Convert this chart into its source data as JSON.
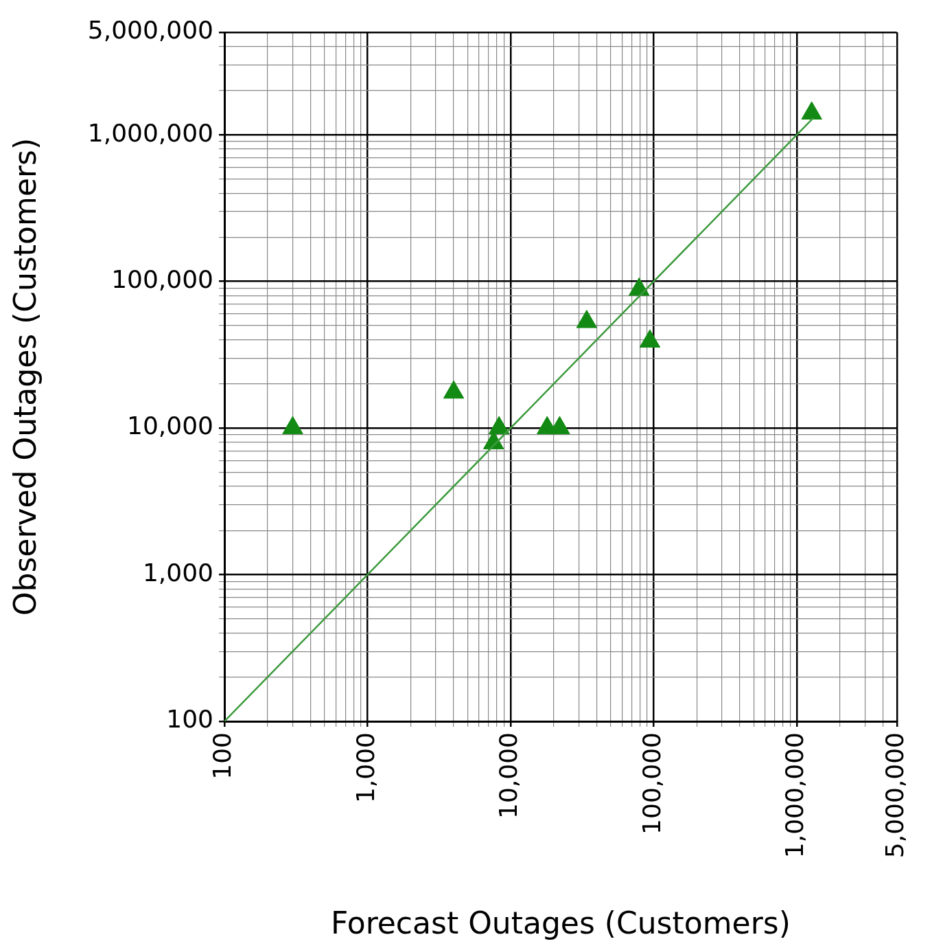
{
  "chart_data": {
    "type": "scatter",
    "xlabel": "Forecast Outages (Customers)",
    "ylabel": "Observed Outages (Customers)",
    "log": "xy",
    "grid": true,
    "legend": false,
    "marker": "triangle",
    "xlim": [
      100,
      5000000
    ],
    "ylim": [
      100,
      5000000
    ],
    "xticks": [
      {
        "value": 100,
        "label": "100"
      },
      {
        "value": 200,
        "label": null
      },
      {
        "value": 300,
        "label": null
      },
      {
        "value": 400,
        "label": null
      },
      {
        "value": 500,
        "label": null
      },
      {
        "value": 600,
        "label": null
      },
      {
        "value": 700,
        "label": null
      },
      {
        "value": 800,
        "label": null
      },
      {
        "value": 900,
        "label": null
      },
      {
        "value": 1000,
        "label": "1,000"
      },
      {
        "value": 2000,
        "label": null
      },
      {
        "value": 3000,
        "label": null
      },
      {
        "value": 4000,
        "label": null
      },
      {
        "value": 5000,
        "label": null
      },
      {
        "value": 6000,
        "label": null
      },
      {
        "value": 7000,
        "label": null
      },
      {
        "value": 8000,
        "label": null
      },
      {
        "value": 9000,
        "label": null
      },
      {
        "value": 10000,
        "label": "10,000"
      },
      {
        "value": 20000,
        "label": null
      },
      {
        "value": 30000,
        "label": null
      },
      {
        "value": 40000,
        "label": null
      },
      {
        "value": 50000,
        "label": null
      },
      {
        "value": 60000,
        "label": null
      },
      {
        "value": 70000,
        "label": null
      },
      {
        "value": 80000,
        "label": null
      },
      {
        "value": 90000,
        "label": null
      },
      {
        "value": 100000,
        "label": "100,000"
      },
      {
        "value": 200000,
        "label": null
      },
      {
        "value": 300000,
        "label": null
      },
      {
        "value": 400000,
        "label": null
      },
      {
        "value": 500000,
        "label": null
      },
      {
        "value": 600000,
        "label": null
      },
      {
        "value": 700000,
        "label": null
      },
      {
        "value": 800000,
        "label": null
      },
      {
        "value": 900000,
        "label": null
      },
      {
        "value": 1000000,
        "label": "1,000,000"
      },
      {
        "value": 2000000,
        "label": null
      },
      {
        "value": 3000000,
        "label": null
      },
      {
        "value": 4000000,
        "label": null
      },
      {
        "value": 5000000,
        "label": "5,000,000"
      }
    ],
    "yticks": [
      {
        "value": 100,
        "label": "100"
      },
      {
        "value": 200,
        "label": null
      },
      {
        "value": 300,
        "label": null
      },
      {
        "value": 400,
        "label": null
      },
      {
        "value": 500,
        "label": null
      },
      {
        "value": 600,
        "label": null
      },
      {
        "value": 700,
        "label": null
      },
      {
        "value": 800,
        "label": null
      },
      {
        "value": 900,
        "label": null
      },
      {
        "value": 1000,
        "label": "1,000"
      },
      {
        "value": 2000,
        "label": null
      },
      {
        "value": 3000,
        "label": null
      },
      {
        "value": 4000,
        "label": null
      },
      {
        "value": 5000,
        "label": null
      },
      {
        "value": 6000,
        "label": null
      },
      {
        "value": 7000,
        "label": null
      },
      {
        "value": 8000,
        "label": null
      },
      {
        "value": 9000,
        "label": null
      },
      {
        "value": 10000,
        "label": "10,000"
      },
      {
        "value": 20000,
        "label": null
      },
      {
        "value": 30000,
        "label": null
      },
      {
        "value": 40000,
        "label": null
      },
      {
        "value": 50000,
        "label": null
      },
      {
        "value": 60000,
        "label": null
      },
      {
        "value": 70000,
        "label": null
      },
      {
        "value": 80000,
        "label": null
      },
      {
        "value": 90000,
        "label": null
      },
      {
        "value": 100000,
        "label": "100,000"
      },
      {
        "value": 200000,
        "label": null
      },
      {
        "value": 300000,
        "label": null
      },
      {
        "value": 400000,
        "label": null
      },
      {
        "value": 500000,
        "label": null
      },
      {
        "value": 600000,
        "label": null
      },
      {
        "value": 700000,
        "label": null
      },
      {
        "value": 800000,
        "label": null
      },
      {
        "value": 900000,
        "label": null
      },
      {
        "value": 1000000,
        "label": "1,000,000"
      },
      {
        "value": 2000000,
        "label": null
      },
      {
        "value": 3000000,
        "label": null
      },
      {
        "value": 4000000,
        "label": null
      },
      {
        "value": 5000000,
        "label": "5,000,000"
      }
    ],
    "series": [
      {
        "type": "line",
        "marker": "none",
        "color": "#3c9a3c",
        "x": [
          100,
          1300000
        ],
        "values": [
          100,
          1300000
        ]
      },
      {
        "color": "#138a13",
        "x": [
          300,
          4000,
          7600,
          8300,
          18000,
          22000,
          34000,
          79000,
          94000,
          1270000
        ],
        "values": [
          10000,
          17500,
          7900,
          10000,
          10000,
          10000,
          53000,
          88000,
          39000,
          1400000
        ]
      }
    ]
  }
}
